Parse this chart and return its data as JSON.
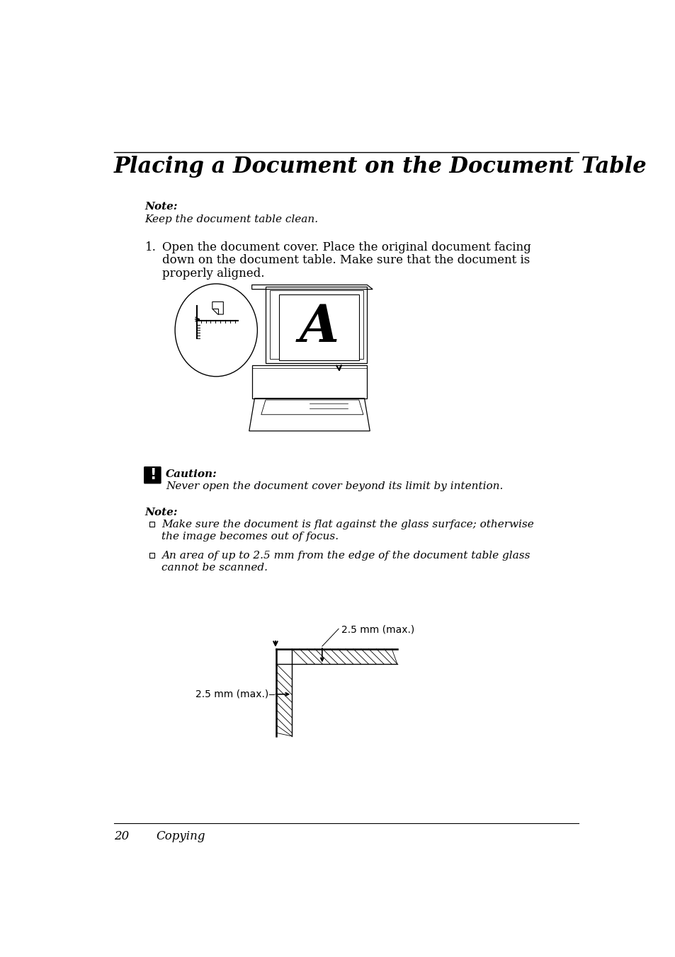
{
  "title": "Placing a Document on the Document Table",
  "note_label": "Note:",
  "note_text": "Keep the document table clean.",
  "step1_num": "1.",
  "step1_text_line1": "Open the document cover. Place the original document facing",
  "step1_text_line2": "down on the document table. Make sure that the document is",
  "step1_text_line3": "properly aligned.",
  "caution_label": "Caution:",
  "caution_text": "Never open the document cover beyond its limit by intention.",
  "note2_label": "Note:",
  "bullet1_line1": "Make sure the document is flat against the glass surface; otherwise",
  "bullet1_line2": "the image becomes out of focus.",
  "bullet2_line1": "An area of up to 2.5 mm from the edge of the document table glass",
  "bullet2_line2": "cannot be scanned.",
  "dim_label1": "2.5 mm (max.)",
  "dim_label2": "2.5 mm (max.)",
  "footer_page": "20",
  "footer_chapter": "Copying",
  "bg_color": "#ffffff",
  "text_color": "#000000"
}
